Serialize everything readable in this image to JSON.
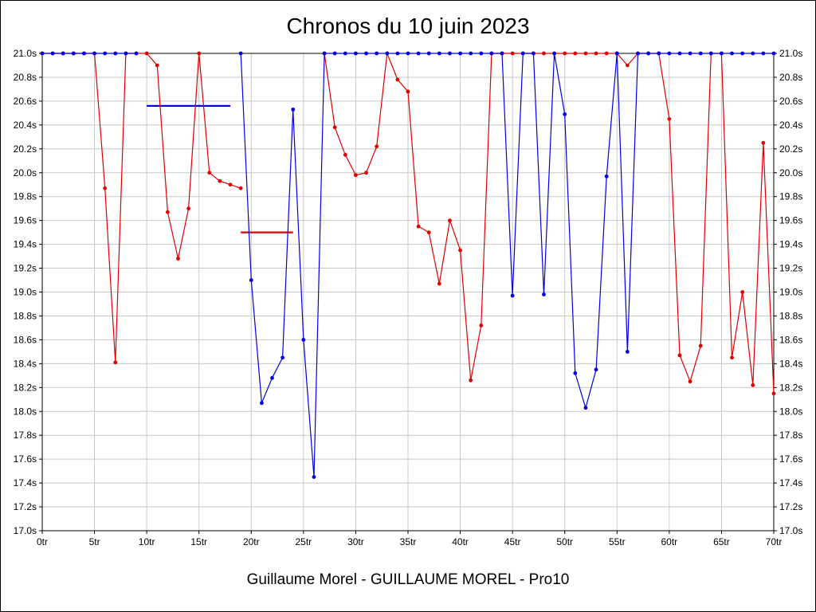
{
  "page": {
    "footer": "Guillaume Morel - GUILLAUME MOREL - Pro10"
  },
  "chart_data": {
    "type": "line",
    "title": "Chronos du 10 juin 2023",
    "xlabel": "",
    "ylabel": "",
    "x_unit": "tr",
    "y_unit": "s",
    "xlim": [
      0,
      70
    ],
    "ylim": [
      17.0,
      21.0
    ],
    "grid": true,
    "grid_color": "#c8c8c8",
    "clip_max": 21.0,
    "x_ticks": [
      0,
      5,
      10,
      15,
      20,
      25,
      30,
      35,
      40,
      45,
      50,
      55,
      60,
      65,
      70
    ],
    "x_tick_labels": [
      "0tr",
      "5tr",
      "10tr",
      "15tr",
      "20tr",
      "25tr",
      "30tr",
      "35tr",
      "40tr",
      "45tr",
      "50tr",
      "55tr",
      "60tr",
      "65tr",
      "70tr"
    ],
    "y_ticks": [
      17.0,
      17.2,
      17.4,
      17.6,
      17.8,
      18.0,
      18.2,
      18.4,
      18.6,
      18.8,
      19.0,
      19.2,
      19.4,
      19.6,
      19.8,
      20.0,
      20.2,
      20.4,
      20.6,
      20.8,
      21.0
    ],
    "y_tick_labels": [
      "17.0s",
      "17.2s",
      "17.4s",
      "17.6s",
      "17.8s",
      "18.0s",
      "18.2s",
      "18.4s",
      "18.6s",
      "18.8s",
      "19.0s",
      "19.2s",
      "19.4s",
      "19.6s",
      "19.8s",
      "20.0s",
      "20.2s",
      "20.4s",
      "20.6s",
      "20.8s",
      "21.0s"
    ],
    "series": [
      {
        "name": "red",
        "color": "#e00000",
        "values": [
          21.0,
          21.0,
          21.0,
          21.0,
          21.0,
          21.0,
          19.87,
          18.41,
          21.0,
          21.0,
          21.0,
          20.9,
          19.67,
          19.28,
          19.7,
          21.0,
          20.0,
          19.93,
          19.9,
          19.87,
          null,
          null,
          null,
          null,
          null,
          null,
          null,
          21.0,
          20.38,
          20.15,
          19.98,
          20.0,
          20.22,
          21.0,
          20.78,
          20.68,
          19.55,
          19.5,
          19.07,
          19.6,
          19.35,
          18.26,
          18.72,
          21.0,
          21.0,
          21.0,
          21.0,
          21.0,
          21.0,
          21.0,
          21.0,
          21.0,
          21.0,
          21.0,
          21.0,
          21.0,
          20.9,
          21.0,
          21.0,
          21.0,
          20.45,
          18.47,
          18.25,
          18.55,
          21.0,
          21.0,
          18.45,
          19.0,
          18.22,
          20.25,
          18.15
        ]
      },
      {
        "name": "blue",
        "color": "#0000e0",
        "values": [
          21.0,
          21.0,
          21.0,
          21.0,
          21.0,
          21.0,
          21.0,
          21.0,
          21.0,
          21.0,
          null,
          null,
          null,
          null,
          null,
          null,
          null,
          null,
          null,
          21.0,
          19.1,
          18.07,
          18.28,
          18.45,
          20.53,
          18.6,
          17.45,
          21.0,
          21.0,
          21.0,
          21.0,
          21.0,
          21.0,
          21.0,
          21.0,
          21.0,
          21.0,
          21.0,
          21.0,
          21.0,
          21.0,
          21.0,
          21.0,
          21.0,
          21.0,
          18.97,
          21.0,
          21.0,
          18.98,
          21.0,
          20.49,
          18.32,
          18.03,
          18.35,
          19.97,
          21.0,
          18.5,
          21.0,
          21.0,
          21.0,
          21.0,
          21.0,
          21.0,
          21.0,
          21.0,
          21.0,
          21.0,
          21.0,
          21.0,
          21.0,
          21.0
        ]
      }
    ],
    "avg_segments": [
      {
        "series": "blue",
        "color": "#0000e0",
        "value": 20.56,
        "from": 10,
        "to": 18
      },
      {
        "series": "red",
        "color": "#e00000",
        "value": 19.5,
        "from": 19,
        "to": 24
      }
    ],
    "legend_position": "none"
  }
}
